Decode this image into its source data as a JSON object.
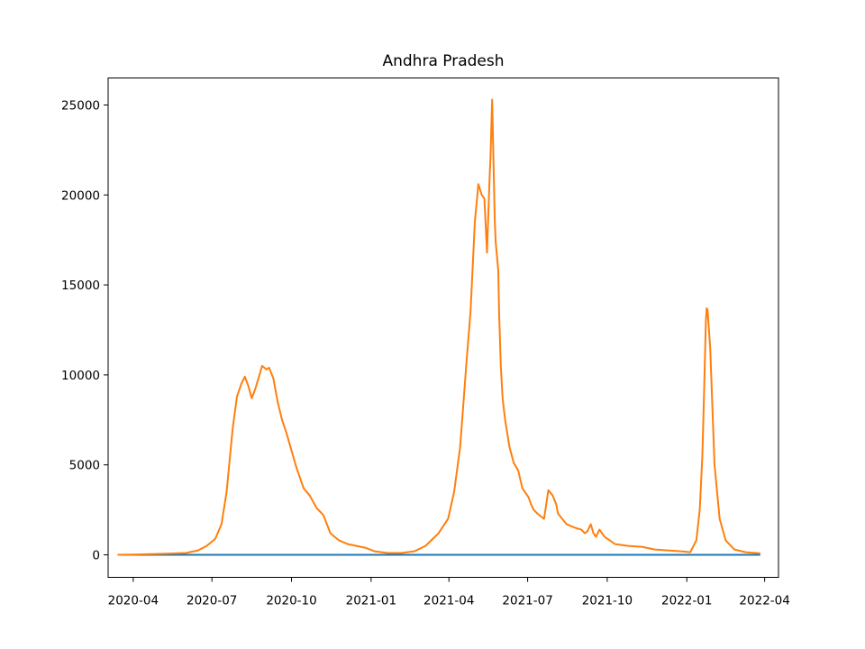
{
  "chart_data": {
    "type": "line",
    "title": "Andhra Pradesh",
    "xlabel": "",
    "ylabel": "",
    "x_tick_labels": [
      "2020-04",
      "2020-07",
      "2020-10",
      "2021-01",
      "2021-04",
      "2021-07",
      "2021-10",
      "2022-01",
      "2022-04"
    ],
    "y_tick_labels": [
      "0",
      "5000",
      "10000",
      "15000",
      "20000",
      "25000"
    ],
    "ylim": [
      -1250,
      26500
    ],
    "xlim": [
      "2020-03-03",
      "2022-04-17"
    ],
    "grid": false,
    "legend": "none",
    "series": [
      {
        "color": "#1f77b4",
        "x": [
          "2020-03-14",
          "2022-03-27"
        ],
        "y": [
          0,
          0
        ]
      },
      {
        "color": "#ff7f0e",
        "x": [
          "2020-03-14",
          "2020-04-01",
          "2020-05-01",
          "2020-06-01",
          "2020-06-15",
          "2020-06-25",
          "2020-07-05",
          "2020-07-12",
          "2020-07-18",
          "2020-07-25",
          "2020-07-30",
          "2020-08-04",
          "2020-08-08",
          "2020-08-12",
          "2020-08-16",
          "2020-08-20",
          "2020-08-25",
          "2020-08-28",
          "2020-09-02",
          "2020-09-05",
          "2020-09-10",
          "2020-09-15",
          "2020-09-20",
          "2020-09-25",
          "2020-10-01",
          "2020-10-07",
          "2020-10-15",
          "2020-10-22",
          "2020-10-30",
          "2020-11-07",
          "2020-11-15",
          "2020-11-25",
          "2020-12-05",
          "2020-12-15",
          "2020-12-25",
          "2021-01-05",
          "2021-01-20",
          "2021-02-05",
          "2021-02-20",
          "2021-03-05",
          "2021-03-20",
          "2021-03-31",
          "2021-04-07",
          "2021-04-14",
          "2021-04-21",
          "2021-04-26",
          "2021-05-01",
          "2021-05-05",
          "2021-05-09",
          "2021-05-12",
          "2021-05-15",
          "2021-05-18",
          "2021-05-19",
          "2021-05-21",
          "2021-05-24",
          "2021-05-25",
          "2021-05-28",
          "2021-05-29",
          "2021-05-31",
          "2021-06-02",
          "2021-06-05",
          "2021-06-10",
          "2021-06-15",
          "2021-06-20",
          "2021-06-25",
          "2021-07-02",
          "2021-07-05",
          "2021-07-08",
          "2021-07-12",
          "2021-07-20",
          "2021-07-25",
          "2021-07-30",
          "2021-08-03",
          "2021-08-05",
          "2021-08-10",
          "2021-08-15",
          "2021-08-25",
          "2021-09-01",
          "2021-09-05",
          "2021-09-08",
          "2021-09-12",
          "2021-09-15",
          "2021-09-18",
          "2021-09-22",
          "2021-09-28",
          "2021-10-10",
          "2021-10-25",
          "2021-11-10",
          "2021-11-25",
          "2021-12-10",
          "2021-12-25",
          "2022-01-05",
          "2022-01-12",
          "2022-01-16",
          "2022-01-19",
          "2022-01-21",
          "2022-01-23",
          "2022-01-24",
          "2022-01-25",
          "2022-01-28",
          "2022-02-02",
          "2022-02-08",
          "2022-02-15",
          "2022-02-25",
          "2022-03-10",
          "2022-03-27"
        ],
        "y": [
          0,
          10,
          50,
          100,
          250,
          500,
          900,
          1700,
          3500,
          7000,
          8800,
          9500,
          9900,
          9400,
          8700,
          9200,
          10000,
          10500,
          10300,
          10400,
          9800,
          8500,
          7500,
          6800,
          5800,
          4800,
          3700,
          3300,
          2600,
          2200,
          1200,
          800,
          600,
          500,
          400,
          200,
          100,
          100,
          200,
          500,
          1200,
          2000,
          3500,
          6000,
          10500,
          13500,
          18500,
          20600,
          20000,
          19800,
          16800,
          21000,
          22000,
          25300,
          18600,
          17400,
          15800,
          13500,
          10500,
          8700,
          7500,
          6000,
          5100,
          4700,
          3700,
          3200,
          2800,
          2500,
          2300,
          2000,
          3600,
          3300,
          2800,
          2300,
          2000,
          1700,
          1500,
          1400,
          1200,
          1300,
          1700,
          1200,
          1000,
          1400,
          1000,
          600,
          500,
          450,
          300,
          250,
          200,
          150,
          800,
          2500,
          5500,
          9000,
          13000,
          13700,
          13600,
          11500,
          5000,
          2000,
          800,
          300,
          150,
          80
        ]
      }
    ]
  }
}
